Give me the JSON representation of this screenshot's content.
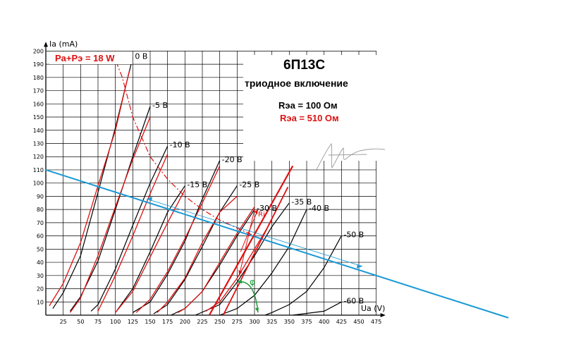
{
  "chart_data": {
    "type": "line",
    "title": "6П13С",
    "subtitle": "триодное включение",
    "xlabel": "Ua (V)",
    "ylabel": "Ia (mA)",
    "xlim": [
      0,
      475
    ],
    "ylim": [
      0,
      200
    ],
    "x_ticks": [
      25,
      50,
      75,
      100,
      125,
      150,
      175,
      200,
      225,
      250,
      275,
      300,
      325,
      350,
      375,
      400,
      425,
      450,
      475
    ],
    "y_ticks": [
      10,
      20,
      30,
      40,
      50,
      60,
      70,
      80,
      90,
      100,
      110,
      120,
      130,
      140,
      150,
      160,
      170,
      180,
      190,
      200
    ],
    "grid": true,
    "legend": {
      "power_limit": "Pa+Pэ = 18 W",
      "r100": "Rэа = 100 Ом",
      "r510": "Rэа = 510 Ом"
    },
    "annotations": {
      "ri": "Ri",
      "phi": "φ"
    },
    "colors": {
      "r100": "#000000",
      "r510": "#dd1111",
      "load_line": "#1a9ad6",
      "angle": "#1f9a3a"
    },
    "series_100": [
      {
        "name": "0 В",
        "points": [
          [
            10,
            5
          ],
          [
            25,
            17
          ],
          [
            50,
            45
          ],
          [
            75,
            93
          ],
          [
            100,
            142
          ],
          [
            125,
            195
          ]
        ]
      },
      {
        "name": "-5 В",
        "points": [
          [
            35,
            3
          ],
          [
            50,
            14
          ],
          [
            75,
            41
          ],
          [
            100,
            80
          ],
          [
            125,
            120
          ],
          [
            150,
            158
          ]
        ]
      },
      {
        "name": "-10 В",
        "points": [
          [
            65,
            3
          ],
          [
            75,
            8
          ],
          [
            100,
            35
          ],
          [
            125,
            68
          ],
          [
            150,
            100
          ],
          [
            175,
            128
          ]
        ]
      },
      {
        "name": "-15 В",
        "points": [
          [
            100,
            2
          ],
          [
            125,
            20
          ],
          [
            150,
            48
          ],
          [
            175,
            78
          ],
          [
            200,
            98
          ]
        ]
      },
      {
        "name": "-20 В",
        "points": [
          [
            125,
            2
          ],
          [
            150,
            10
          ],
          [
            175,
            31
          ],
          [
            200,
            56
          ],
          [
            225,
            88
          ],
          [
            250,
            117
          ]
        ]
      },
      {
        "name": "-25 В",
        "points": [
          [
            155,
            1
          ],
          [
            175,
            8
          ],
          [
            200,
            27
          ],
          [
            225,
            52
          ],
          [
            250,
            78
          ],
          [
            275,
            98
          ]
        ]
      },
      {
        "name": "-30 В",
        "points": [
          [
            180,
            0
          ],
          [
            200,
            5
          ],
          [
            225,
            18
          ],
          [
            250,
            38
          ],
          [
            275,
            60
          ],
          [
            300,
            80
          ]
        ]
      },
      {
        "name": "-35 В",
        "points": [
          [
            215,
            0
          ],
          [
            250,
            8
          ],
          [
            275,
            25
          ],
          [
            300,
            45
          ],
          [
            325,
            67
          ],
          [
            350,
            85
          ]
        ]
      },
      {
        "name": "-40 В",
        "points": [
          [
            250,
            0
          ],
          [
            275,
            5
          ],
          [
            300,
            15
          ],
          [
            325,
            32
          ],
          [
            350,
            52
          ],
          [
            375,
            80
          ]
        ]
      },
      {
        "name": "-50 В",
        "points": [
          [
            315,
            0
          ],
          [
            325,
            2
          ],
          [
            350,
            8
          ],
          [
            375,
            18
          ],
          [
            400,
            36
          ],
          [
            425,
            60
          ]
        ]
      },
      {
        "name": "-60 В",
        "points": [
          [
            355,
            0
          ],
          [
            400,
            3
          ],
          [
            425,
            10
          ]
        ]
      }
    ],
    "series_510": [
      {
        "points": [
          [
            5,
            7
          ],
          [
            25,
            24
          ],
          [
            50,
            55
          ],
          [
            75,
            98
          ],
          [
            100,
            140
          ],
          [
            120,
            185
          ]
        ]
      },
      {
        "points": [
          [
            35,
            2
          ],
          [
            50,
            13
          ],
          [
            75,
            45
          ],
          [
            100,
            82
          ],
          [
            125,
            118
          ],
          [
            150,
            150
          ]
        ]
      },
      {
        "points": [
          [
            75,
            3
          ],
          [
            100,
            30
          ],
          [
            125,
            60
          ],
          [
            150,
            92
          ],
          [
            175,
            122
          ]
        ]
      },
      {
        "points": [
          [
            100,
            2
          ],
          [
            125,
            18
          ],
          [
            150,
            44
          ],
          [
            175,
            70
          ],
          [
            200,
            95
          ]
        ]
      },
      {
        "points": [
          [
            130,
            2
          ],
          [
            150,
            12
          ],
          [
            175,
            33
          ],
          [
            200,
            58
          ],
          [
            225,
            85
          ],
          [
            250,
            113
          ]
        ]
      },
      {
        "points": [
          [
            160,
            2
          ],
          [
            175,
            10
          ],
          [
            200,
            28
          ],
          [
            225,
            55
          ],
          [
            250,
            78
          ],
          [
            275,
            90
          ]
        ]
      },
      {
        "points": [
          [
            190,
            2
          ],
          [
            200,
            5
          ],
          [
            225,
            18
          ],
          [
            250,
            40
          ],
          [
            275,
            62
          ],
          [
            300,
            82
          ]
        ]
      },
      {
        "points": [
          [
            230,
            3
          ],
          [
            250,
            10
          ],
          [
            275,
            28
          ],
          [
            300,
            50
          ],
          [
            325,
            72
          ]
        ]
      }
    ],
    "power_limit_curve": [
      [
        95,
        200
      ],
      [
        110,
        180
      ],
      [
        125,
        150
      ],
      [
        150,
        120
      ],
      [
        175,
        103
      ],
      [
        200,
        90
      ],
      [
        225,
        80
      ],
      [
        250,
        72
      ],
      [
        275,
        66
      ],
      [
        300,
        60
      ]
    ],
    "load_line": [
      [
        0,
        110
      ],
      [
        475,
        30
      ]
    ]
  }
}
